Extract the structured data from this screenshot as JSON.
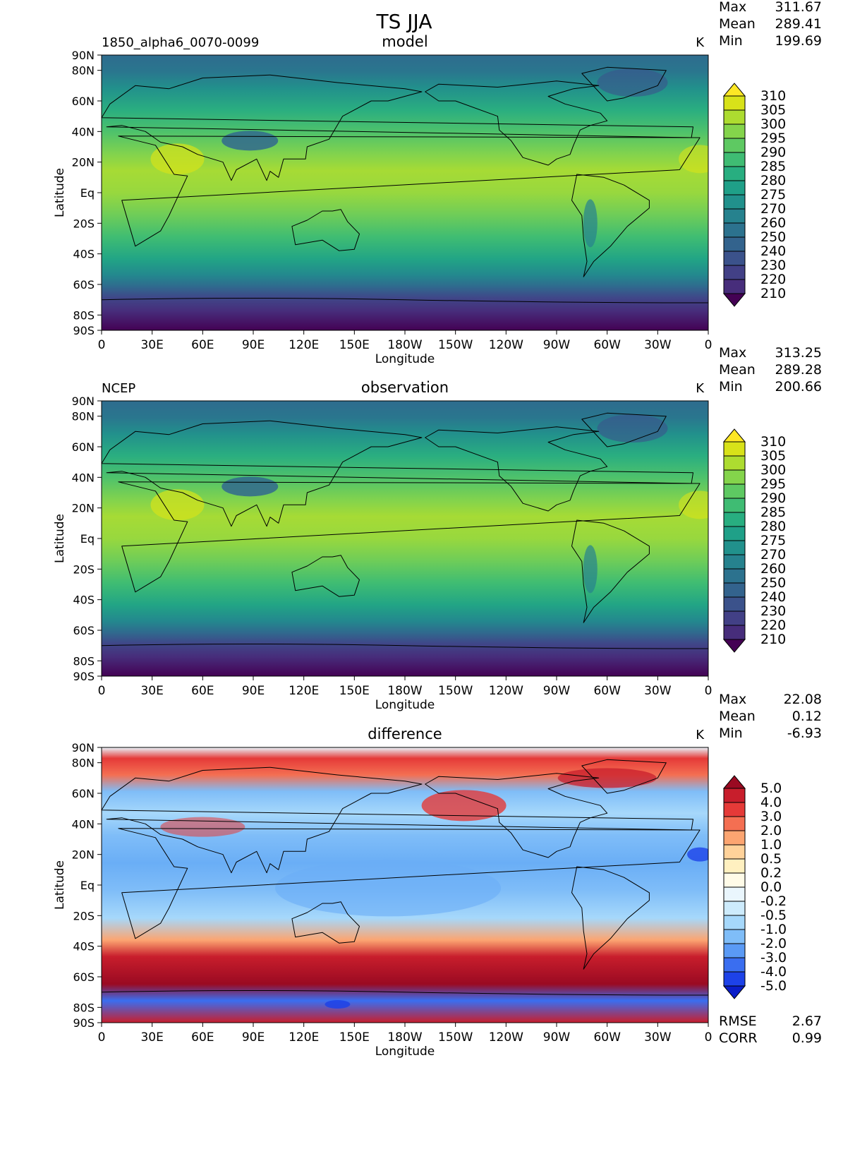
{
  "title": "TS JJA",
  "panels": [
    {
      "left_label": "1850_alpha6_0070-0099",
      "center_label": "model",
      "units": "K",
      "stats": [
        {
          "label": "Max",
          "value": "311.67"
        },
        {
          "label": "Mean",
          "value": "289.41"
        },
        {
          "label": "Min",
          "value": "199.69"
        }
      ],
      "colorbar": "abs",
      "footer_stats": []
    },
    {
      "left_label": "NCEP",
      "center_label": "observation",
      "units": "K",
      "stats": [
        {
          "label": "Max",
          "value": "313.25"
        },
        {
          "label": "Mean",
          "value": "289.28"
        },
        {
          "label": "Min",
          "value": "200.66"
        }
      ],
      "colorbar": "abs",
      "footer_stats": []
    },
    {
      "left_label": "",
      "center_label": "difference",
      "units": "K",
      "stats": [
        {
          "label": "Max",
          "value": "22.08"
        },
        {
          "label": "Mean",
          "value": "0.12"
        },
        {
          "label": "Min",
          "value": "-6.93"
        }
      ],
      "colorbar": "diff",
      "footer_stats": [
        {
          "label": "RMSE",
          "value": "2.67"
        },
        {
          "label": "CORR",
          "value": "0.99"
        }
      ]
    }
  ],
  "axes": {
    "ylabel": "Latitude",
    "xlabel": "Longitude",
    "lat_ticks": [
      "90N",
      "80N",
      "60N",
      "40N",
      "20N",
      "Eq",
      "20S",
      "40S",
      "60S",
      "80S",
      "90S"
    ],
    "lat_values": [
      90,
      80,
      60,
      40,
      20,
      0,
      -20,
      -40,
      -60,
      -80,
      -90
    ],
    "lon_ticks": [
      "0",
      "30E",
      "60E",
      "90E",
      "120E",
      "150E",
      "180W",
      "150W",
      "120W",
      "90W",
      "60W",
      "30W",
      "0"
    ],
    "lon_values": [
      0,
      30,
      60,
      90,
      120,
      150,
      180,
      210,
      240,
      270,
      300,
      330,
      360
    ]
  },
  "colorbars": {
    "abs": {
      "levels": [
        "310",
        "305",
        "300",
        "295",
        "290",
        "285",
        "280",
        "275",
        "270",
        "260",
        "250",
        "240",
        "230",
        "220",
        "210"
      ],
      "colors": [
        "#440154",
        "#48186a",
        "#472d7b",
        "#424086",
        "#3b528b",
        "#33638d",
        "#2c728e",
        "#26828e",
        "#21918c",
        "#1fa088",
        "#28ae80",
        "#3fbc73",
        "#5ec962",
        "#84d44b",
        "#addc30",
        "#d8e219",
        "#fde725"
      ]
    },
    "diff": {
      "levels": [
        "5.0",
        "4.0",
        "3.0",
        "2.0",
        "1.0",
        "0.5",
        "0.2",
        "0.0",
        "-0.2",
        "-0.5",
        "-1.0",
        "-2.0",
        "-3.0",
        "-4.0",
        "-5.0"
      ],
      "colors": [
        "#0a1dc8",
        "#1d42e8",
        "#3a6ef0",
        "#5a9af5",
        "#7fbdf8",
        "#a6d8fb",
        "#cdebfc",
        "#eaf6fd",
        "#fffbe8",
        "#fff0c0",
        "#ffd29a",
        "#fca571",
        "#f46f52",
        "#e53a38",
        "#c81e2c",
        "#9a0a22"
      ]
    }
  },
  "colors": {
    "antarctic_band": "#481f70",
    "arctic_band": "#2a778e",
    "tropics": "#a6db35",
    "mid_latitudes": "#3fbc73",
    "diff_positive": "#c81e2c",
    "diff_negative": "#5a9af5",
    "coastline": "#000000"
  }
}
